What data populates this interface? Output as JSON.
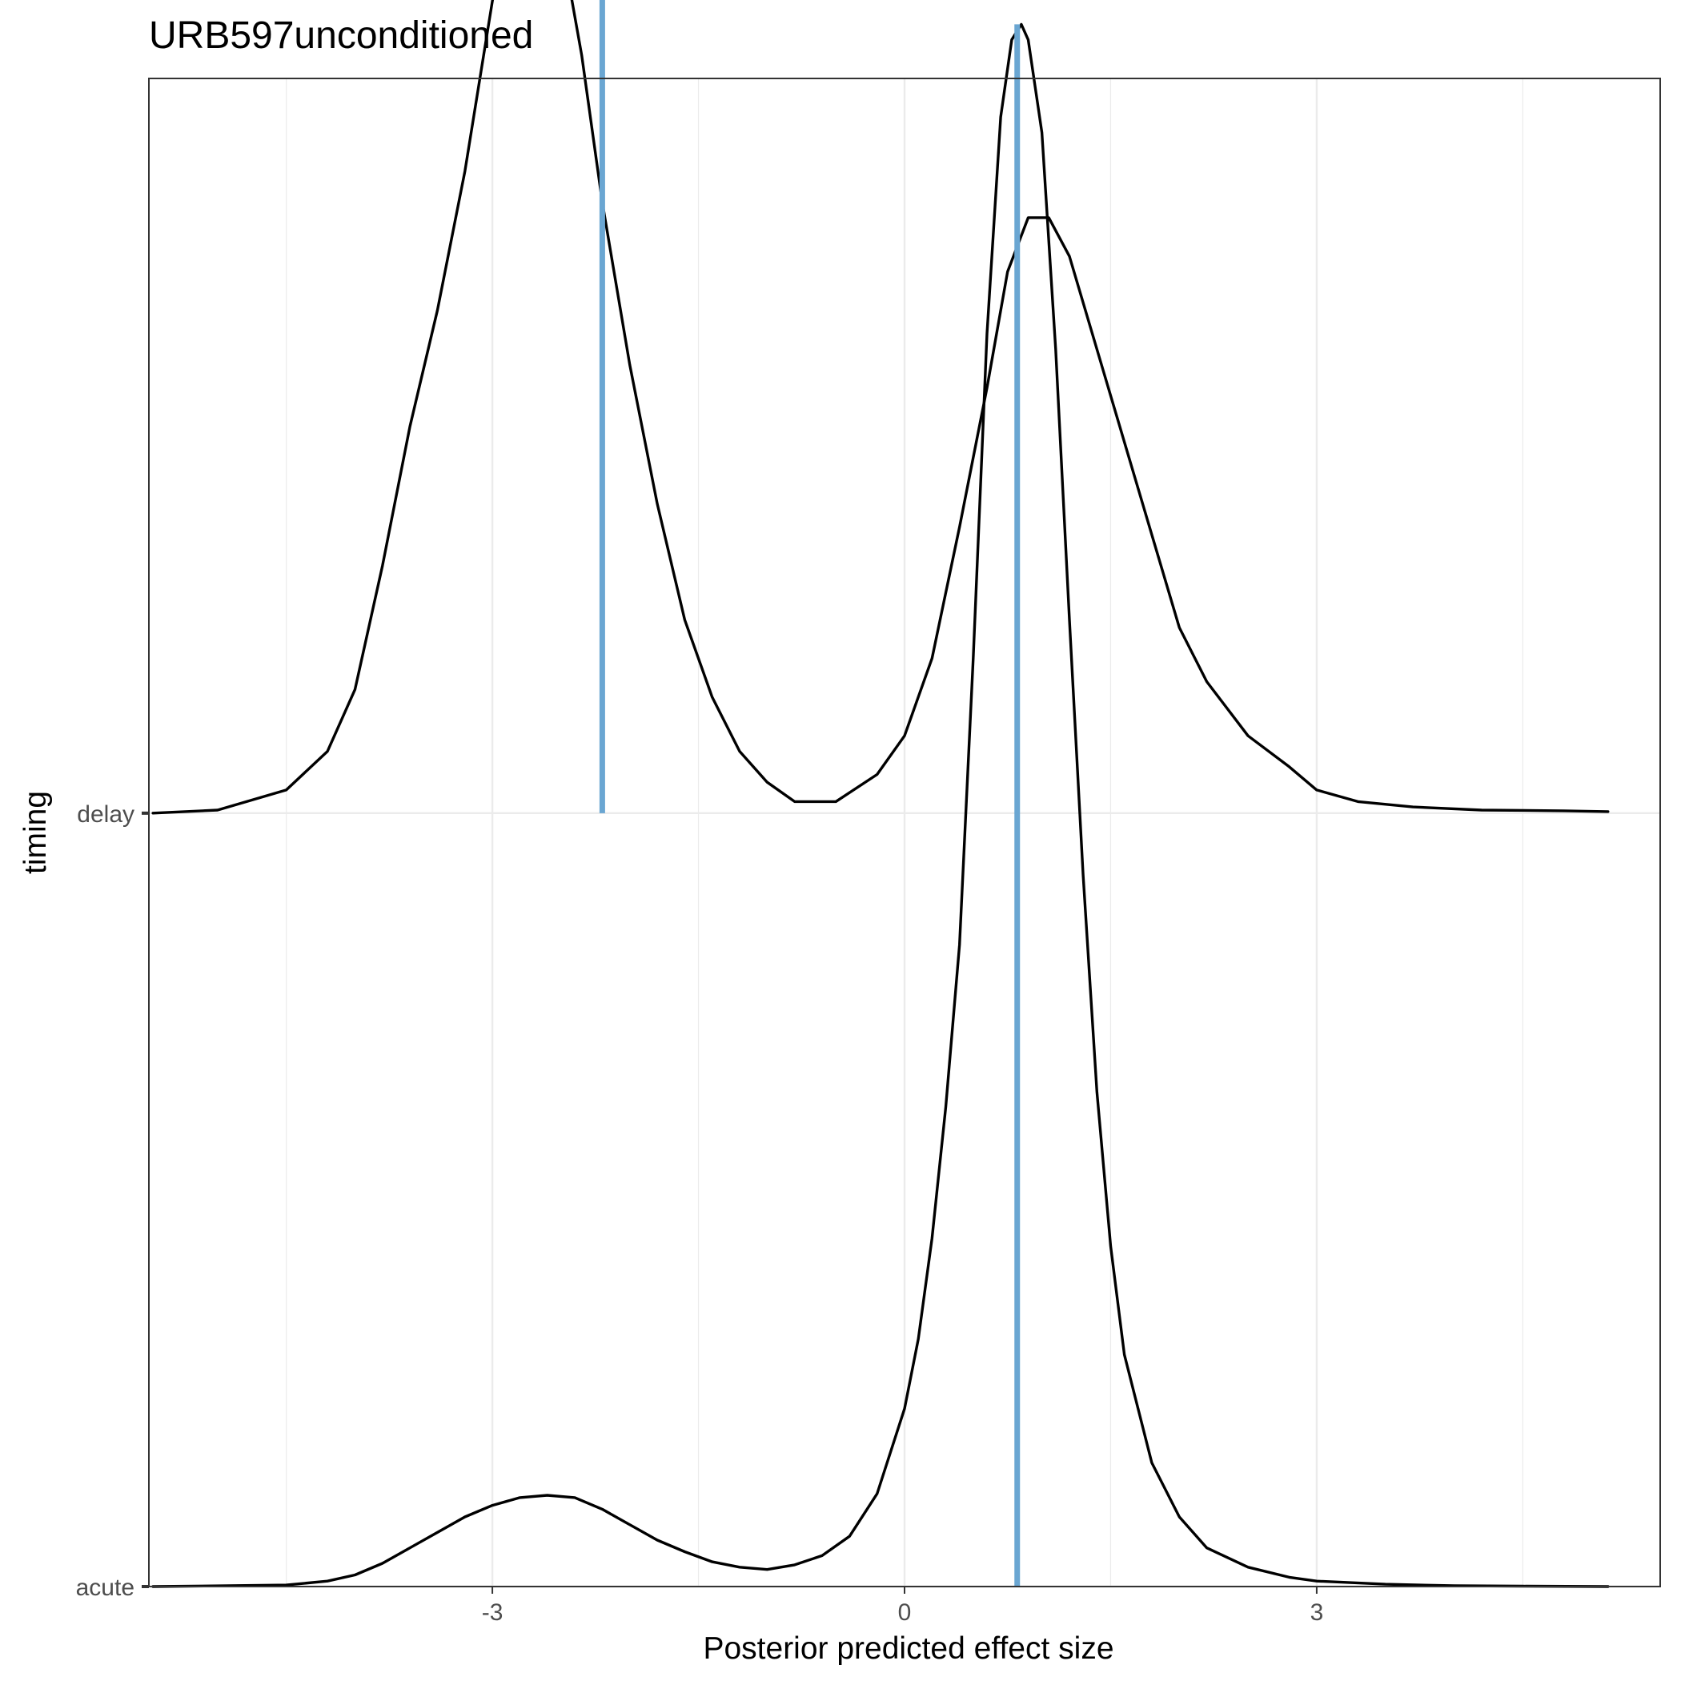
{
  "chart_data": {
    "type": "ridgeline",
    "title": "URB597unconditioned",
    "xlabel": "Posterior predicted effect size",
    "ylabel": "timing",
    "xlim": [
      -5.5,
      5.5
    ],
    "x_ticks": [
      -3,
      0,
      3
    ],
    "x_tick_labels": [
      "-3",
      "0",
      "3"
    ],
    "categories": [
      "acute",
      "delay"
    ],
    "category_ylim": [
      1,
      2.95
    ],
    "grid": true,
    "legend": "none",
    "colors": {
      "density": "#000000",
      "reference_line": "#6aa6d2",
      "grid": "#ebebeb",
      "panel_border": "#333333"
    },
    "series": [
      {
        "category": "delay",
        "reference_x": -2.2,
        "density": [
          [
            -5.47,
            0.0
          ],
          [
            -5.0,
            0.004
          ],
          [
            -4.5,
            0.03
          ],
          [
            -4.2,
            0.08
          ],
          [
            -4.0,
            0.16
          ],
          [
            -3.8,
            0.32
          ],
          [
            -3.6,
            0.5
          ],
          [
            -3.4,
            0.65
          ],
          [
            -3.2,
            0.83
          ],
          [
            -3.0,
            1.05
          ],
          [
            -2.85,
            1.2
          ],
          [
            -2.75,
            1.25
          ],
          [
            -2.65,
            1.23
          ],
          [
            -2.5,
            1.13
          ],
          [
            -2.35,
            0.98
          ],
          [
            -2.2,
            0.79
          ],
          [
            -2.0,
            0.58
          ],
          [
            -1.8,
            0.4
          ],
          [
            -1.6,
            0.25
          ],
          [
            -1.4,
            0.15
          ],
          [
            -1.2,
            0.08
          ],
          [
            -1.0,
            0.04
          ],
          [
            -0.8,
            0.015
          ],
          [
            -0.5,
            0.015
          ],
          [
            -0.2,
            0.05
          ],
          [
            0.0,
            0.1
          ],
          [
            0.2,
            0.2
          ],
          [
            0.4,
            0.37
          ],
          [
            0.6,
            0.55
          ],
          [
            0.75,
            0.7
          ],
          [
            0.9,
            0.77
          ],
          [
            1.05,
            0.77
          ],
          [
            1.2,
            0.72
          ],
          [
            1.4,
            0.6
          ],
          [
            1.6,
            0.48
          ],
          [
            1.8,
            0.36
          ],
          [
            2.0,
            0.24
          ],
          [
            2.2,
            0.17
          ],
          [
            2.5,
            0.1
          ],
          [
            2.8,
            0.06
          ],
          [
            3.0,
            0.03
          ],
          [
            3.3,
            0.015
          ],
          [
            3.7,
            0.008
          ],
          [
            4.2,
            0.004
          ],
          [
            4.8,
            0.003
          ],
          [
            5.12,
            0.002
          ]
        ]
      },
      {
        "category": "acute",
        "reference_x": 0.82,
        "density": [
          [
            -5.47,
            0.0
          ],
          [
            -4.5,
            0.002
          ],
          [
            -4.2,
            0.007
          ],
          [
            -4.0,
            0.015
          ],
          [
            -3.8,
            0.03
          ],
          [
            -3.6,
            0.05
          ],
          [
            -3.4,
            0.07
          ],
          [
            -3.2,
            0.09
          ],
          [
            -3.0,
            0.105
          ],
          [
            -2.8,
            0.115
          ],
          [
            -2.6,
            0.118
          ],
          [
            -2.4,
            0.115
          ],
          [
            -2.2,
            0.1
          ],
          [
            -2.0,
            0.08
          ],
          [
            -1.8,
            0.06
          ],
          [
            -1.6,
            0.045
          ],
          [
            -1.4,
            0.032
          ],
          [
            -1.2,
            0.025
          ],
          [
            -1.0,
            0.022
          ],
          [
            -0.8,
            0.028
          ],
          [
            -0.6,
            0.04
          ],
          [
            -0.4,
            0.065
          ],
          [
            -0.2,
            0.12
          ],
          [
            0.0,
            0.23
          ],
          [
            0.1,
            0.32
          ],
          [
            0.2,
            0.45
          ],
          [
            0.3,
            0.62
          ],
          [
            0.4,
            0.83
          ],
          [
            0.5,
            1.2
          ],
          [
            0.6,
            1.62
          ],
          [
            0.7,
            1.9
          ],
          [
            0.78,
            2.0
          ],
          [
            0.85,
            2.02
          ],
          [
            0.9,
            2.0
          ],
          [
            1.0,
            1.88
          ],
          [
            1.1,
            1.6
          ],
          [
            1.2,
            1.25
          ],
          [
            1.3,
            0.92
          ],
          [
            1.4,
            0.64
          ],
          [
            1.5,
            0.44
          ],
          [
            1.6,
            0.3
          ],
          [
            1.8,
            0.16
          ],
          [
            2.0,
            0.09
          ],
          [
            2.2,
            0.05
          ],
          [
            2.5,
            0.025
          ],
          [
            2.8,
            0.012
          ],
          [
            3.0,
            0.007
          ],
          [
            3.5,
            0.003
          ],
          [
            4.0,
            0.001
          ],
          [
            4.5,
            0.0005
          ],
          [
            5.12,
            0.0
          ]
        ]
      }
    ]
  }
}
